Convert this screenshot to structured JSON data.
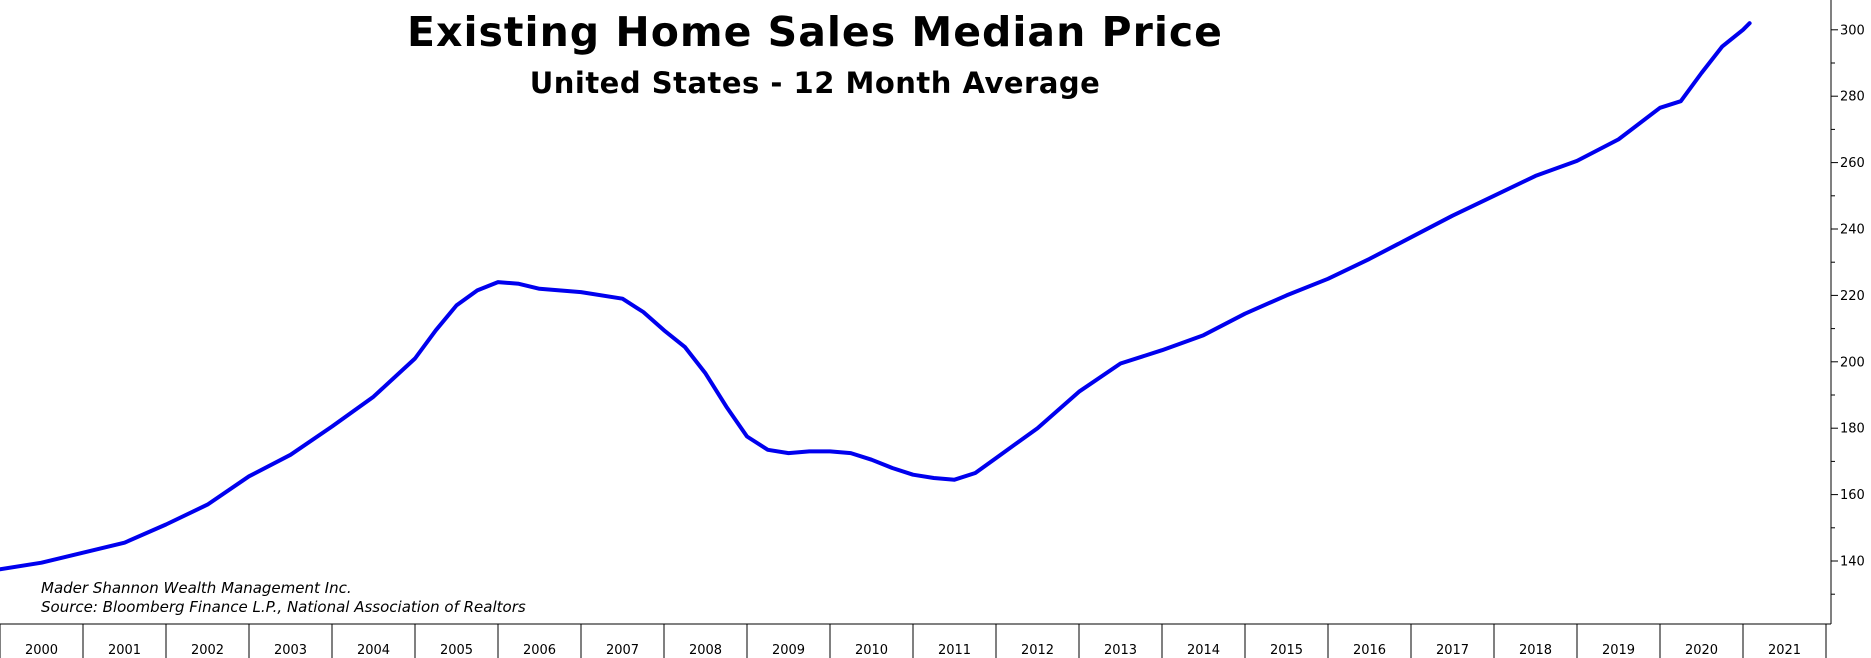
{
  "chart_data": {
    "type": "line",
    "title": "Existing Home Sales Median Price",
    "subtitle": "United States - 12 Month Average",
    "xlabel": "",
    "ylabel": "",
    "ylim": [
      124,
      309
    ],
    "y_ticks": [
      140,
      160,
      180,
      200,
      220,
      240,
      260,
      280,
      300
    ],
    "x_axis_years": [
      "2000",
      "2001",
      "2002",
      "2003",
      "2004",
      "2005",
      "2006",
      "2007",
      "2008",
      "2009",
      "2010",
      "2011",
      "2012",
      "2013",
      "2014",
      "2015",
      "2016",
      "2017",
      "2018",
      "2019",
      "2020",
      "2021"
    ],
    "grid": false,
    "y_axis_position": "right",
    "series": [
      {
        "color": "#0000ee",
        "x": [
          2000.0,
          2000.5,
          2001.0,
          2001.5,
          2002.0,
          2002.5,
          2003.0,
          2003.5,
          2004.0,
          2004.5,
          2005.0,
          2005.25,
          2005.5,
          2005.75,
          2006.0,
          2006.25,
          2006.5,
          2007.0,
          2007.5,
          2007.75,
          2008.0,
          2008.25,
          2008.5,
          2008.75,
          2009.0,
          2009.25,
          2009.5,
          2009.75,
          2010.0,
          2010.25,
          2010.5,
          2010.75,
          2011.0,
          2011.25,
          2011.5,
          2011.75,
          2012.0,
          2012.5,
          2013.0,
          2013.5,
          2014.0,
          2014.5,
          2015.0,
          2015.5,
          2016.0,
          2016.5,
          2017.0,
          2017.5,
          2018.0,
          2018.5,
          2019.0,
          2019.5,
          2020.0,
          2020.25,
          2020.5,
          2020.75,
          2021.0,
          2021.08
        ],
        "values": [
          137.5,
          139.5,
          142.5,
          145.5,
          151.0,
          157.0,
          165.5,
          172.0,
          180.5,
          189.5,
          201.0,
          209.5,
          217.0,
          221.5,
          224.0,
          223.5,
          222.0,
          221.0,
          219.0,
          215.0,
          209.5,
          204.5,
          196.5,
          186.5,
          177.5,
          173.5,
          172.5,
          173.0,
          173.0,
          172.5,
          170.5,
          168.0,
          166.0,
          165.0,
          164.5,
          166.5,
          171.0,
          180.0,
          191.0,
          199.5,
          203.5,
          208.0,
          214.5,
          220.0,
          225.0,
          231.0,
          237.5,
          244.0,
          250.0,
          256.0,
          260.5,
          267.0,
          276.5,
          278.5,
          287.0,
          295.0,
          300.0,
          302.0
        ]
      }
    ],
    "source_lines": [
      "Mader Shannon Wealth Management Inc.",
      "Source: Bloomberg Finance L.P., National Association of Realtors"
    ]
  }
}
